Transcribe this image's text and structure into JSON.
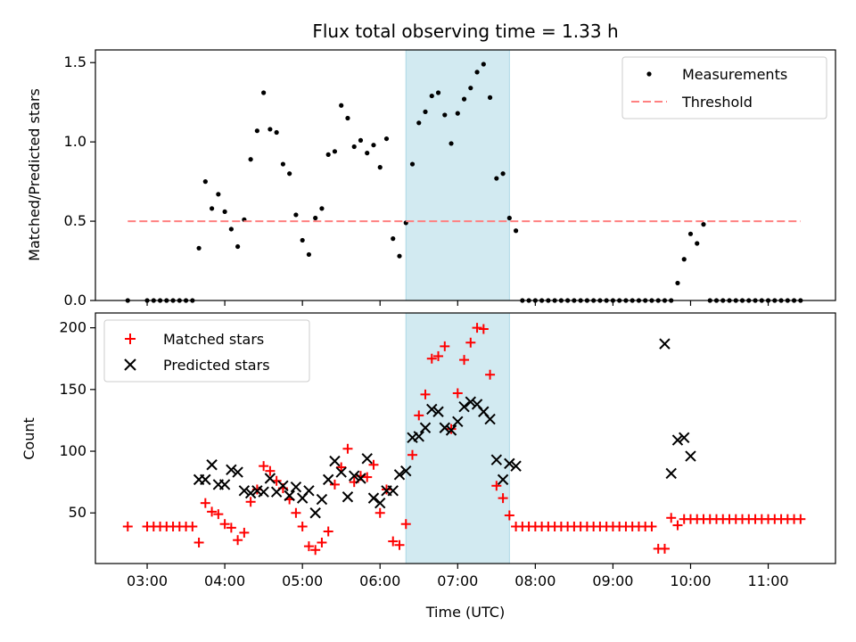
{
  "chart_data": {
    "title": "Flux total observing time = 1.33 h",
    "xlabel": "Time (UTC)",
    "x_ticks": [
      "03:00",
      "04:00",
      "05:00",
      "06:00",
      "07:00",
      "08:00",
      "09:00",
      "10:00",
      "11:00"
    ],
    "xlim": [
      "02:20",
      "11:52"
    ],
    "highlight_span": {
      "start": "06:20",
      "end": "07:40",
      "color": "#add8e6"
    },
    "top": {
      "type": "scatter",
      "ylabel": "Matched/Predicted stars",
      "ylim": [
        0,
        1.58
      ],
      "y_ticks": [
        "0.0",
        "0.5",
        "1.0",
        "1.5"
      ],
      "legend": {
        "placement": "upper-right",
        "entries": [
          "Measurements",
          "Threshold"
        ]
      },
      "series": [
        {
          "name": "Measurements",
          "color": "#000000",
          "marker": "dot",
          "x": [
            "02:45",
            "03:00",
            "03:05",
            "03:10",
            "03:15",
            "03:20",
            "03:25",
            "03:30",
            "03:35",
            "03:40",
            "03:45",
            "03:50",
            "03:55",
            "04:00",
            "04:05",
            "04:10",
            "04:15",
            "04:20",
            "04:25",
            "04:30",
            "04:35",
            "04:40",
            "04:45",
            "04:50",
            "04:55",
            "05:00",
            "05:05",
            "05:10",
            "05:15",
            "05:20",
            "05:25",
            "05:30",
            "05:35",
            "05:40",
            "05:45",
            "05:50",
            "05:55",
            "06:00",
            "06:05",
            "06:10",
            "06:15",
            "06:20",
            "06:25",
            "06:30",
            "06:35",
            "06:40",
            "06:45",
            "06:50",
            "06:55",
            "07:00",
            "07:05",
            "07:10",
            "07:15",
            "07:20",
            "07:25",
            "07:30",
            "07:35",
            "07:40",
            "07:45",
            "07:50",
            "07:55",
            "08:00",
            "08:05",
            "08:10",
            "08:15",
            "08:20",
            "08:25",
            "08:30",
            "08:35",
            "08:40",
            "08:45",
            "08:50",
            "08:55",
            "09:00",
            "09:05",
            "09:10",
            "09:15",
            "09:20",
            "09:25",
            "09:30",
            "09:35",
            "09:40",
            "09:45",
            "09:50",
            "09:55",
            "10:00",
            "10:05",
            "10:10",
            "10:15",
            "10:20",
            "10:25",
            "10:30",
            "10:35",
            "10:40",
            "10:45",
            "10:50",
            "10:55",
            "11:00",
            "11:05",
            "11:10",
            "11:15",
            "11:20",
            "11:25"
          ],
          "y": [
            0,
            0,
            0,
            0,
            0,
            0,
            0,
            0,
            0,
            0.33,
            0.75,
            0.58,
            0.67,
            0.56,
            0.45,
            0.34,
            0.51,
            0.89,
            1.07,
            1.31,
            1.08,
            1.06,
            0.86,
            0.8,
            0.54,
            0.38,
            0.29,
            0.52,
            0.58,
            0.92,
            0.94,
            1.23,
            1.15,
            0.97,
            1.01,
            0.93,
            0.98,
            0.84,
            1.02,
            0.39,
            0.28,
            0.49,
            0.86,
            1.12,
            1.19,
            1.29,
            1.31,
            1.17,
            0.99,
            1.18,
            1.27,
            1.34,
            1.44,
            1.49,
            1.28,
            0.77,
            0.8,
            0.52,
            0.44,
            0,
            0,
            0,
            0,
            0,
            0,
            0,
            0,
            0,
            0,
            0,
            0,
            0,
            0,
            0,
            0,
            0,
            0,
            0,
            0,
            0,
            0,
            0,
            0,
            0.11,
            0.26,
            0.42,
            0.36,
            0.48,
            0,
            0,
            0,
            0,
            0,
            0,
            0,
            0,
            0,
            0,
            0,
            0,
            0,
            0,
            0
          ]
        },
        {
          "name": "Threshold",
          "color": "#ff8080",
          "style": "dashed",
          "x": [
            "02:45",
            "11:25"
          ],
          "y": [
            0.5,
            0.5
          ]
        }
      ]
    },
    "bottom": {
      "type": "scatter",
      "ylabel": "Count",
      "ylim": [
        9,
        212
      ],
      "y_ticks": [
        "50",
        "100",
        "150",
        "200"
      ],
      "legend": {
        "placement": "upper-left",
        "entries": [
          "Matched stars",
          "Predicted stars"
        ]
      },
      "series": [
        {
          "name": "Matched stars",
          "color": "#ff0000",
          "marker": "plus",
          "x": [
            "02:45",
            "03:00",
            "03:05",
            "03:10",
            "03:15",
            "03:20",
            "03:25",
            "03:30",
            "03:35",
            "03:40",
            "03:45",
            "03:50",
            "03:55",
            "04:00",
            "04:05",
            "04:10",
            "04:15",
            "04:20",
            "04:25",
            "04:30",
            "04:35",
            "04:40",
            "04:45",
            "04:50",
            "04:55",
            "05:00",
            "05:05",
            "05:10",
            "05:15",
            "05:20",
            "05:25",
            "05:30",
            "05:35",
            "05:40",
            "05:45",
            "05:50",
            "05:55",
            "06:00",
            "06:05",
            "06:10",
            "06:15",
            "06:20",
            "06:25",
            "06:30",
            "06:35",
            "06:40",
            "06:45",
            "06:50",
            "06:55",
            "07:00",
            "07:05",
            "07:10",
            "07:15",
            "07:20",
            "07:25",
            "07:30",
            "07:35",
            "07:40",
            "07:45",
            "07:50",
            "07:55",
            "08:00",
            "08:05",
            "08:10",
            "08:15",
            "08:20",
            "08:25",
            "08:30",
            "08:35",
            "08:40",
            "08:45",
            "08:50",
            "08:55",
            "09:00",
            "09:05",
            "09:10",
            "09:15",
            "09:20",
            "09:25",
            "09:30",
            "09:35",
            "09:40",
            "09:45",
            "09:50",
            "09:55",
            "10:00",
            "10:05",
            "10:10",
            "10:15",
            "10:20",
            "10:25",
            "10:30",
            "10:35",
            "10:40",
            "10:45",
            "10:50",
            "10:55",
            "11:00",
            "11:05",
            "11:10",
            "11:15",
            "11:20",
            "11:25"
          ],
          "y": [
            39,
            39,
            39,
            39,
            39,
            39,
            39,
            39,
            39,
            26,
            58,
            51,
            49,
            41,
            38,
            28,
            34,
            59,
            69,
            88,
            84,
            76,
            70,
            61,
            50,
            39,
            23,
            20,
            26,
            35,
            73,
            87,
            102,
            75,
            80,
            79,
            89,
            50,
            69,
            27,
            24,
            41,
            97,
            129,
            146,
            175,
            177,
            185,
            118,
            147,
            174,
            188,
            200,
            199,
            162,
            72,
            62,
            48,
            39,
            39,
            39,
            39,
            39,
            39,
            39,
            39,
            39,
            39,
            39,
            39,
            39,
            39,
            39,
            39,
            39,
            39,
            39,
            39,
            39,
            39,
            21,
            21,
            46,
            40,
            45,
            45,
            45,
            45,
            45,
            45,
            45,
            45,
            45,
            45,
            45,
            45,
            45,
            45,
            45,
            45,
            45,
            45,
            45
          ]
        },
        {
          "name": "Predicted stars",
          "color": "#000000",
          "marker": "x",
          "x": [
            "03:40",
            "03:45",
            "03:50",
            "03:55",
            "04:00",
            "04:05",
            "04:10",
            "04:15",
            "04:20",
            "04:25",
            "04:30",
            "04:35",
            "04:40",
            "04:45",
            "04:50",
            "04:55",
            "05:00",
            "05:05",
            "05:10",
            "05:15",
            "05:20",
            "05:25",
            "05:30",
            "05:35",
            "05:40",
            "05:45",
            "05:50",
            "05:55",
            "06:00",
            "06:05",
            "06:10",
            "06:15",
            "06:20",
            "06:25",
            "06:30",
            "06:35",
            "06:40",
            "06:45",
            "06:50",
            "06:55",
            "07:00",
            "07:05",
            "07:10",
            "07:15",
            "07:20",
            "07:25",
            "07:30",
            "07:35",
            "07:40",
            "07:45",
            "09:40",
            "09:45",
            "09:50",
            "09:55",
            "10:00"
          ],
          "y": [
            77,
            77,
            89,
            73,
            73,
            85,
            83,
            68,
            66,
            68,
            67,
            78,
            67,
            72,
            64,
            71,
            62,
            68,
            50,
            61,
            77,
            92,
            83,
            63,
            80,
            78,
            94,
            62,
            58,
            68,
            68,
            81,
            84,
            111,
            112,
            119,
            134,
            132,
            119,
            117,
            124,
            136,
            140,
            138,
            132,
            126,
            93,
            77,
            90,
            88,
            187,
            82,
            109,
            111,
            96
          ]
        }
      ]
    }
  }
}
